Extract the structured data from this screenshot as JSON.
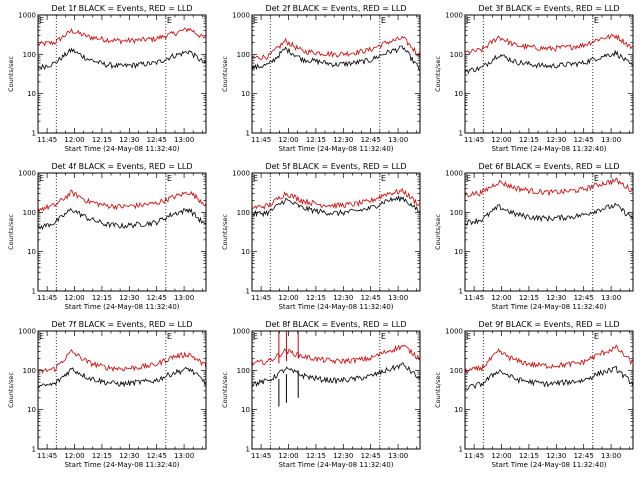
{
  "chart_data": [
    {
      "type": "line",
      "title": "Det 1f BLACK = Events, RED = LLD",
      "xlabel": "Start Time (24-May-08 11:32:40)",
      "ylabel": "Counts/sec",
      "yscale": "log",
      "ylim": [
        1,
        1000
      ],
      "y_ticks": [
        "1",
        "10",
        "100",
        "1000"
      ],
      "x_ticks": [
        "11:45",
        "12:00",
        "12:15",
        "12:30",
        "12:45",
        "13:00"
      ],
      "dotted_lines": [
        "11:50",
        "12:50"
      ],
      "flag_marks": [
        "E",
        "E"
      ],
      "x": [
        0,
        0.1,
        0.2,
        0.3,
        0.4,
        0.5,
        0.6,
        0.7,
        0.8,
        0.9,
        1
      ],
      "series": [
        {
          "color": "#d40000",
          "values": [
            180,
            200,
            400,
            280,
            240,
            220,
            230,
            250,
            330,
            450,
            240
          ]
        },
        {
          "color": "#000000",
          "values": [
            45,
            60,
            130,
            75,
            55,
            50,
            55,
            60,
            90,
            120,
            55
          ]
        }
      ],
      "spikes": []
    },
    {
      "type": "line",
      "title": "Det 2f BLACK = Events, RED = LLD",
      "xlabel": "Start Time (24-May-08 11:32:40)",
      "ylabel": "Counts/sec",
      "yscale": "log",
      "ylim": [
        1,
        1000
      ],
      "y_ticks": [
        "1",
        "10",
        "100",
        "1000"
      ],
      "x_ticks": [
        "11:45",
        "12:00",
        "12:15",
        "12:30",
        "12:45",
        "13:00"
      ],
      "dotted_lines": [
        "11:50",
        "12:50"
      ],
      "flag_marks": [
        "E",
        "E"
      ],
      "x": [
        0,
        0.1,
        0.2,
        0.3,
        0.4,
        0.5,
        0.6,
        0.7,
        0.8,
        0.9,
        1
      ],
      "series": [
        {
          "color": "#d40000",
          "values": [
            80,
            90,
            220,
            120,
            110,
            100,
            110,
            130,
            200,
            260,
            90
          ]
        },
        {
          "color": "#000000",
          "values": [
            45,
            55,
            140,
            75,
            65,
            55,
            60,
            70,
            110,
            150,
            40
          ]
        }
      ],
      "spikes": []
    },
    {
      "type": "line",
      "title": "Det 3f BLACK = Events, RED = LLD",
      "xlabel": "Start Time (24-May-08 11:32:40)",
      "ylabel": "Counts/sec",
      "yscale": "log",
      "ylim": [
        1,
        1000
      ],
      "y_ticks": [
        "1",
        "10",
        "100",
        "1000"
      ],
      "x_ticks": [
        "11:45",
        "12:00",
        "12:15",
        "12:30",
        "12:45",
        "13:00"
      ],
      "dotted_lines": [
        "11:50",
        "12:50"
      ],
      "flag_marks": [
        "E",
        "E"
      ],
      "x": [
        0,
        0.1,
        0.2,
        0.3,
        0.4,
        0.5,
        0.6,
        0.7,
        0.8,
        0.9,
        1
      ],
      "series": [
        {
          "color": "#d40000",
          "values": [
            110,
            130,
            280,
            170,
            150,
            140,
            150,
            170,
            250,
            300,
            140
          ]
        },
        {
          "color": "#000000",
          "values": [
            38,
            45,
            100,
            65,
            55,
            50,
            55,
            60,
            85,
            110,
            48
          ]
        }
      ],
      "spikes": []
    },
    {
      "type": "line",
      "title": "Det 4f BLACK = Events, RED = LLD",
      "xlabel": "Start Time (24-May-08 11:32:40)",
      "ylabel": "Counts/sec",
      "yscale": "log",
      "ylim": [
        1,
        1000
      ],
      "y_ticks": [
        "1",
        "10",
        "100",
        "1000"
      ],
      "x_ticks": [
        "11:45",
        "12:00",
        "12:15",
        "12:30",
        "12:45",
        "13:00"
      ],
      "dotted_lines": [
        "11:50",
        "12:50"
      ],
      "flag_marks": [
        "E",
        "E"
      ],
      "x": [
        0,
        0.1,
        0.2,
        0.3,
        0.4,
        0.5,
        0.6,
        0.7,
        0.8,
        0.9,
        1
      ],
      "series": [
        {
          "color": "#d40000",
          "values": [
            120,
            150,
            320,
            190,
            150,
            140,
            150,
            170,
            240,
            330,
            160
          ]
        },
        {
          "color": "#000000",
          "values": [
            40,
            55,
            120,
            70,
            50,
            45,
            50,
            55,
            90,
            120,
            45
          ]
        }
      ],
      "spikes": []
    },
    {
      "type": "line",
      "title": "Det 5f BLACK = Events, RED = LLD",
      "xlabel": "Start Time (24-May-08 11:32:40)",
      "ylabel": "Counts/sec",
      "yscale": "log",
      "ylim": [
        1,
        1000
      ],
      "y_ticks": [
        "1",
        "10",
        "100",
        "1000"
      ],
      "x_ticks": [
        "11:45",
        "12:00",
        "12:15",
        "12:30",
        "12:45",
        "13:00"
      ],
      "dotted_lines": [
        "11:50",
        "12:50"
      ],
      "flag_marks": [
        "E",
        "E"
      ],
      "x": [
        0,
        0.1,
        0.2,
        0.3,
        0.4,
        0.5,
        0.6,
        0.7,
        0.8,
        0.9,
        1
      ],
      "series": [
        {
          "color": "#d40000",
          "values": [
            130,
            150,
            310,
            200,
            160,
            150,
            160,
            190,
            300,
            350,
            150
          ]
        },
        {
          "color": "#000000",
          "values": [
            90,
            100,
            210,
            130,
            105,
            95,
            105,
            125,
            200,
            230,
            100
          ]
        }
      ],
      "spikes": []
    },
    {
      "type": "line",
      "title": "Det 6f BLACK = Events, RED = LLD",
      "xlabel": "Start Time (24-May-08 11:32:40)",
      "ylabel": "Counts/sec",
      "yscale": "log",
      "ylim": [
        1,
        1000
      ],
      "y_ticks": [
        "1",
        "10",
        "100",
        "1000"
      ],
      "x_ticks": [
        "11:45",
        "12:00",
        "12:15",
        "12:30",
        "12:45",
        "13:00"
      ],
      "dotted_lines": [
        "11:50",
        "12:50"
      ],
      "flag_marks": [
        "E",
        "E"
      ],
      "x": [
        0,
        0.1,
        0.2,
        0.3,
        0.4,
        0.5,
        0.6,
        0.7,
        0.8,
        0.9,
        1
      ],
      "series": [
        {
          "color": "#d40000",
          "values": [
            280,
            320,
            600,
            420,
            350,
            320,
            340,
            380,
            520,
            650,
            350
          ]
        },
        {
          "color": "#000000",
          "values": [
            55,
            65,
            140,
            90,
            75,
            70,
            75,
            85,
            120,
            150,
            70
          ]
        }
      ],
      "spikes": []
    },
    {
      "type": "line",
      "title": "Det 7f BLACK = Events, RED = LLD",
      "xlabel": "Start Time (24-May-08 11:32:40)",
      "ylabel": "Counts/sec",
      "yscale": "log",
      "ylim": [
        1,
        1000
      ],
      "y_ticks": [
        "1",
        "10",
        "100",
        "1000"
      ],
      "x_ticks": [
        "11:45",
        "12:00",
        "12:15",
        "12:30",
        "12:45",
        "13:00"
      ],
      "dotted_lines": [
        "11:50",
        "12:50"
      ],
      "flag_marks": [
        "E",
        "E"
      ],
      "x": [
        0,
        0.1,
        0.2,
        0.3,
        0.4,
        0.5,
        0.6,
        0.7,
        0.8,
        0.9,
        1
      ],
      "series": [
        {
          "color": "#d40000",
          "values": [
            90,
            110,
            300,
            160,
            120,
            110,
            120,
            140,
            220,
            260,
            130
          ]
        },
        {
          "color": "#000000",
          "values": [
            38,
            45,
            110,
            65,
            50,
            45,
            50,
            55,
            85,
            110,
            48
          ]
        }
      ],
      "spikes": []
    },
    {
      "type": "line",
      "title": "Det 8f BLACK = Events, RED = LLD",
      "xlabel": "Start Time (24-May-08 11:32:40)",
      "ylabel": "Counts/sec",
      "yscale": "log",
      "ylim": [
        1,
        1000
      ],
      "y_ticks": [
        "1",
        "10",
        "100",
        "1000"
      ],
      "x_ticks": [
        "11:45",
        "12:00",
        "12:15",
        "12:30",
        "12:45",
        "13:00"
      ],
      "dotted_lines": [
        "11:50",
        "12:50"
      ],
      "flag_marks": [
        "E",
        "E"
      ],
      "x": [
        0,
        0.1,
        0.2,
        0.3,
        0.4,
        0.5,
        0.6,
        0.7,
        0.8,
        0.9,
        1
      ],
      "series": [
        {
          "color": "#d40000",
          "values": [
            150,
            170,
            320,
            230,
            190,
            170,
            180,
            200,
            300,
            420,
            200
          ]
        },
        {
          "color": "#000000",
          "values": [
            45,
            55,
            110,
            75,
            60,
            55,
            60,
            70,
            100,
            140,
            60
          ]
        }
      ],
      "spikes": [
        {
          "t": 0.16,
          "color": "#d40000",
          "values": [
            150,
            1000
          ]
        },
        {
          "t": 0.205,
          "color": "#d40000",
          "values": [
            170,
            1000
          ]
        },
        {
          "t": 0.275,
          "color": "#d40000",
          "values": [
            200,
            1000
          ]
        },
        {
          "t": 0.16,
          "color": "#000000",
          "values": [
            12,
            60
          ]
        },
        {
          "t": 0.205,
          "color": "#000000",
          "values": [
            15,
            80
          ]
        },
        {
          "t": 0.275,
          "color": "#000000",
          "values": [
            20,
            100
          ]
        }
      ]
    },
    {
      "type": "line",
      "title": "Det 9f BLACK = Events, RED = LLD",
      "xlabel": "Start Time (24-May-08 11:32:40)",
      "ylabel": "Counts/sec",
      "yscale": "log",
      "ylim": [
        1,
        1000
      ],
      "y_ticks": [
        "1",
        "10",
        "100",
        "1000"
      ],
      "x_ticks": [
        "11:45",
        "12:00",
        "12:15",
        "12:30",
        "12:45",
        "13:00"
      ],
      "dotted_lines": [
        "11:50",
        "12:50"
      ],
      "flag_marks": [
        "E",
        "E"
      ],
      "x": [
        0,
        0.1,
        0.2,
        0.3,
        0.4,
        0.5,
        0.6,
        0.7,
        0.8,
        0.9,
        1
      ],
      "series": [
        {
          "color": "#d40000",
          "values": [
            95,
            115,
            300,
            180,
            140,
            130,
            140,
            160,
            260,
            380,
            150
          ]
        },
        {
          "color": "#000000",
          "values": [
            35,
            45,
            100,
            60,
            50,
            45,
            50,
            55,
            85,
            110,
            45
          ]
        }
      ],
      "spikes": []
    }
  ]
}
